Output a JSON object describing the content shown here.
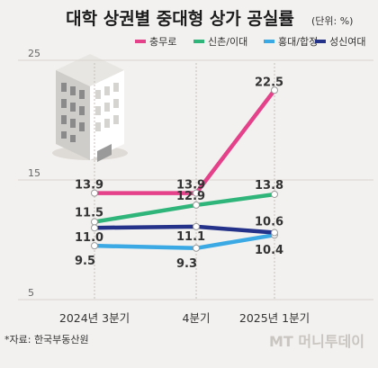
{
  "chart_data": {
    "type": "line",
    "title": "대학 상권별 중대형 상가 공실률",
    "unit": "(단위: %)",
    "categories": [
      "2024년 3분기",
      "4분기",
      "2025년 1분기"
    ],
    "y_ticks": [
      25,
      15,
      5
    ],
    "ylim": [
      5,
      25
    ],
    "legend_position": "top-right",
    "series": [
      {
        "name": "충무로",
        "color": "#e5408a",
        "values": [
          13.9,
          13.9,
          22.5
        ]
      },
      {
        "name": "신촌/이대",
        "color": "#2fb57a",
        "values": [
          11.5,
          12.9,
          13.8
        ]
      },
      {
        "name": "홍대/합정",
        "color": "#3aa9e4",
        "values": [
          9.5,
          9.3,
          10.4
        ]
      },
      {
        "name": "성신여대",
        "color": "#243289",
        "values": [
          11.0,
          11.1,
          10.6
        ]
      }
    ],
    "source": "*자료: 한국부동산원",
    "watermark": "MT 머니투데이",
    "grid": true
  }
}
